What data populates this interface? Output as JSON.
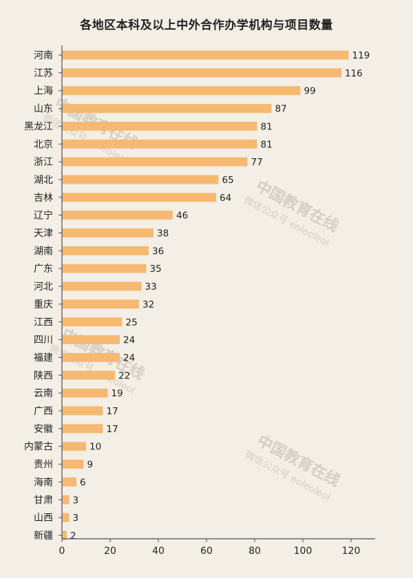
{
  "colors": {
    "background": "#f3eee6",
    "bar": "#f6b971",
    "axis": "#4a4f63",
    "text": "#222222",
    "watermark": "#cfc6bb"
  },
  "watermark": {
    "line1": "中国教育在线",
    "line2": "微信公众号 eoleoleol"
  },
  "chart_data": {
    "type": "bar",
    "orientation": "horizontal",
    "title": "各地区本科及以上中外合作办学机构与项目数量",
    "xlabel": "",
    "ylabel": "",
    "xlim": [
      0,
      130
    ],
    "xticks": [
      0,
      20,
      40,
      60,
      80,
      100,
      120
    ],
    "grid": false,
    "categories": [
      "河南",
      "江苏",
      "上海",
      "山东",
      "黑龙江",
      "北京",
      "浙江",
      "湖北",
      "吉林",
      "辽宁",
      "天津",
      "湖南",
      "广东",
      "河北",
      "重庆",
      "江西",
      "四川",
      "福建",
      "陕西",
      "云南",
      "广西",
      "安徽",
      "内蒙古",
      "贵州",
      "海南",
      "甘肃",
      "山西",
      "新疆"
    ],
    "values": [
      119,
      116,
      99,
      87,
      81,
      81,
      77,
      65,
      64,
      46,
      38,
      36,
      35,
      33,
      32,
      25,
      24,
      24,
      22,
      19,
      17,
      17,
      10,
      9,
      6,
      3,
      3,
      2
    ]
  }
}
